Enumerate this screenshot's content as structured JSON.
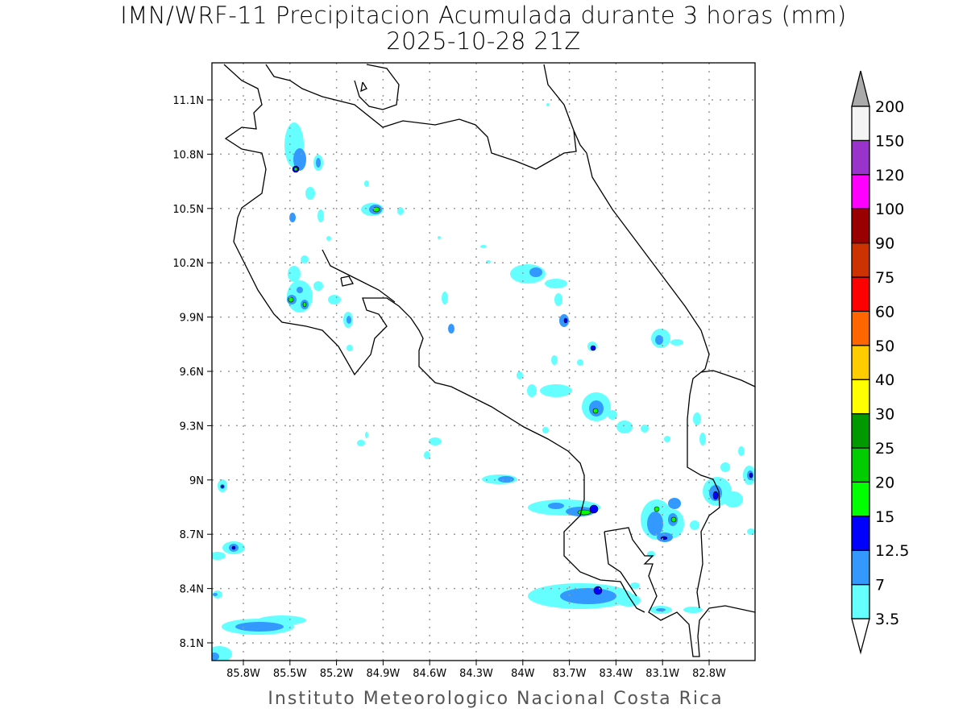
{
  "title": "IMN/WRF-11 Precipitacion Acumulada durante 3 horas (mm)",
  "subtitle": "2025-10-28 21Z",
  "footer": "Instituto Meteorologico Nacional Costa Rica",
  "lon_ticks": [
    "85.8W",
    "85.5W",
    "85.2W",
    "84.9W",
    "84.6W",
    "84.3W",
    "84W",
    "83.7W",
    "83.4W",
    "83.1W",
    "82.8W"
  ],
  "lat_ticks": [
    "11.1N",
    "10.8N",
    "10.5N",
    "10.2N",
    "9.9N",
    "9.6N",
    "9.3N",
    "9N",
    "8.7N",
    "8.4N",
    "8.1N"
  ],
  "legend": {
    "labels": [
      "3.5",
      "7",
      "12.5",
      "15",
      "20",
      "25",
      "30",
      "40",
      "50",
      "60",
      "75",
      "90",
      "100",
      "120",
      "150",
      "200"
    ],
    "colors": [
      "#66ffff",
      "#3399ff",
      "#0000ff",
      "#00ff00",
      "#00cc00",
      "#009900",
      "#ffff00",
      "#ffcc00",
      "#ff6600",
      "#ff0000",
      "#cc3300",
      "#990000",
      "#ff00ff",
      "#9933cc",
      "#f4f4f4"
    ],
    "over_color": "#aaaaaa",
    "under_color": "#ffffff"
  }
}
